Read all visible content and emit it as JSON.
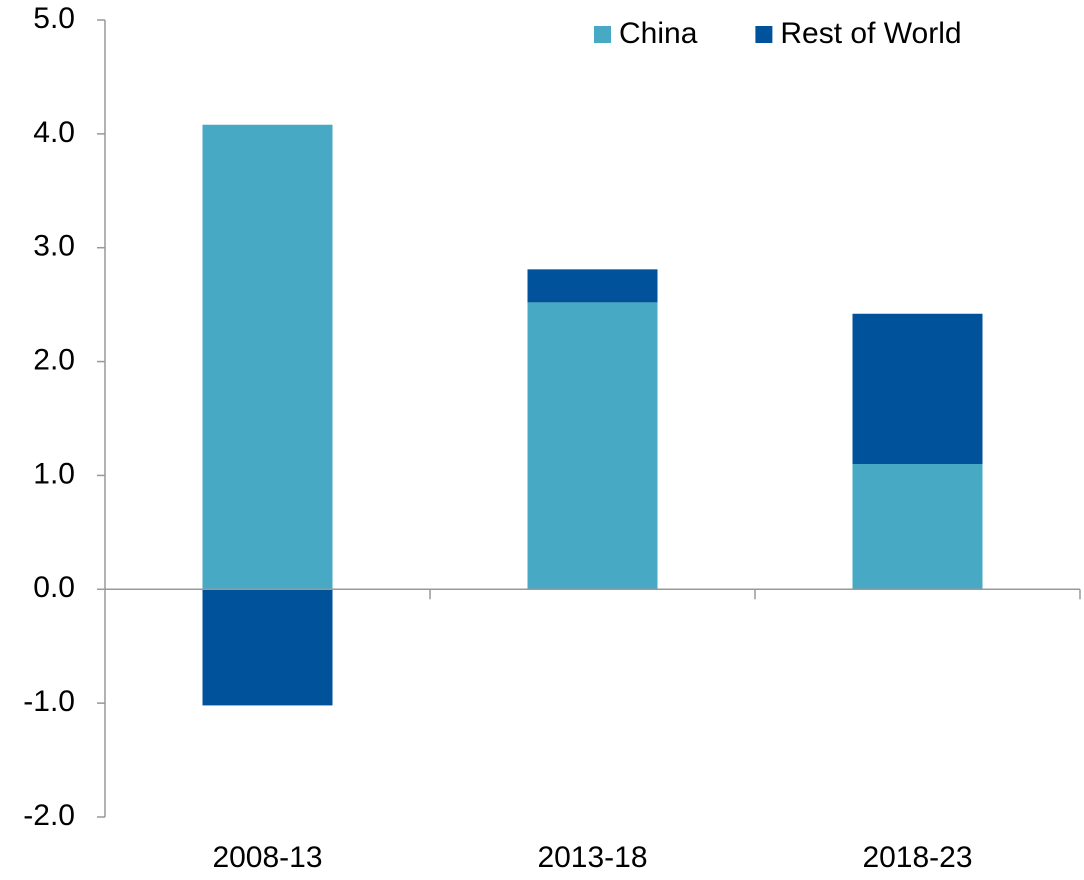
{
  "chart_data": {
    "type": "stacked_bar",
    "categories": [
      "2008-13",
      "2013-18",
      "2018-23"
    ],
    "series": [
      {
        "name": "China",
        "color": "#47a9c4",
        "values": [
          4.08,
          2.52,
          1.1
        ]
      },
      {
        "name": "Rest of World",
        "color": "#00529b",
        "values": [
          -1.02,
          0.29,
          1.32
        ]
      }
    ],
    "ylim": [
      -2,
      5
    ],
    "yticks": [
      {
        "value": -2,
        "label": "-2.0"
      },
      {
        "value": -1,
        "label": "-1.0"
      },
      {
        "value": 0,
        "label": "0.0"
      },
      {
        "value": 1,
        "label": "1.0"
      },
      {
        "value": 2,
        "label": "2.0"
      },
      {
        "value": 3,
        "label": "3.0"
      },
      {
        "value": 4,
        "label": "4.0"
      },
      {
        "value": 5,
        "label": "5.0"
      }
    ],
    "grid": false,
    "legend": "upper right"
  }
}
